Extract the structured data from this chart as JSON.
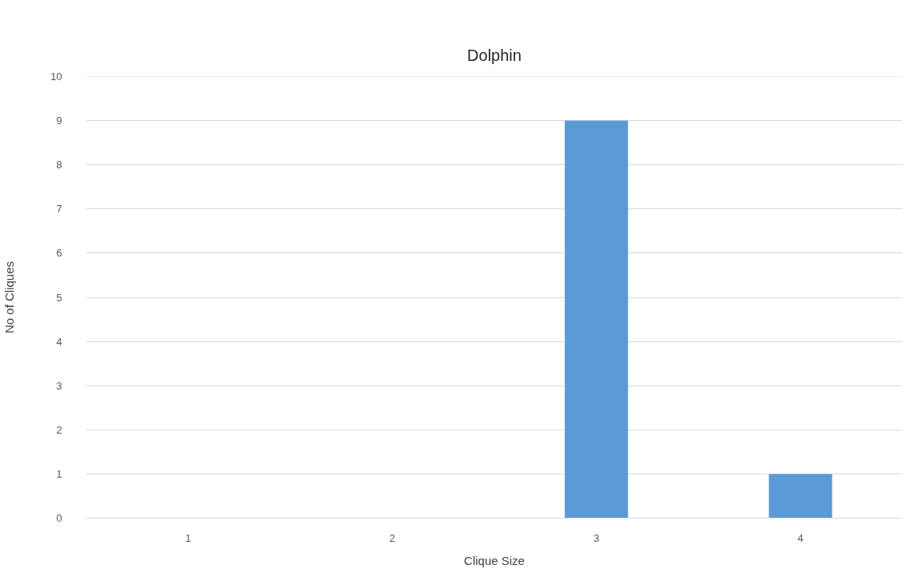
{
  "chart_data": {
    "type": "bar",
    "title": "Dolphin",
    "xlabel": "Clique Size",
    "ylabel": "No of Cliques",
    "categories": [
      "1",
      "2",
      "3",
      "4"
    ],
    "values": [
      0,
      0,
      9,
      1
    ],
    "color": "#5b9bd5",
    "ylim": [
      0,
      10
    ],
    "yticks": [
      0,
      1,
      2,
      3,
      4,
      5,
      6,
      7,
      8,
      9,
      10
    ],
    "grid": "y"
  }
}
